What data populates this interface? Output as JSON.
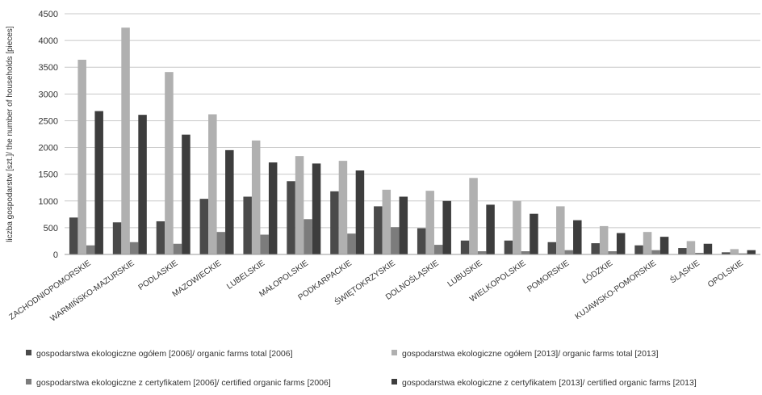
{
  "chart_data": {
    "type": "bar",
    "title": "",
    "xlabel": "",
    "ylabel": "liczba gospodarstw [szt.]/ the number of households [pieces]",
    "ylim": [
      0,
      4500
    ],
    "yticks": [
      0,
      500,
      1000,
      1500,
      2000,
      2500,
      3000,
      3500,
      4000,
      4500
    ],
    "grid": true,
    "legend_position": "bottom",
    "categories": [
      "ZACHODNIOPOMORSKIE",
      "WARMIŃSKO-MAZURSKIE",
      "PODLASKIE",
      "MAZOWIECKIE",
      "LUBELSKIE",
      "MAŁOPOLSKIE",
      "PODKARPACKIE",
      "ŚWIĘTOKRZYSKIE",
      "DOLNOŚLĄSKIE",
      "LUBUSKIE",
      "WIELKOPOLSKIE",
      "POMORSKIE",
      "ŁÓDZKIE",
      "KUJAWSKO-POMORSKIE",
      "ŚLĄSKIE",
      "OPOLSKIE"
    ],
    "series": [
      {
        "name": "gospodarstwa ekologiczne ogółem [2006]/ organic farms total [2006]",
        "color": "#4a4a4a",
        "values": [
          690,
          600,
          620,
          1040,
          1080,
          1370,
          1180,
          900,
          490,
          260,
          260,
          230,
          210,
          170,
          120,
          40
        ]
      },
      {
        "name": "gospodarstwa ekologiczne ogółem [2013]/ organic farms total [2013]",
        "color": "#b0b0b0",
        "values": [
          3640,
          4240,
          3410,
          2620,
          2130,
          1840,
          1750,
          1210,
          1190,
          1430,
          1000,
          900,
          530,
          420,
          250,
          100
        ]
      },
      {
        "name": "gospodarstwa ekologiczne z certyfikatem [2006]/ certified organic farms [2006]",
        "color": "#7c7c7c",
        "values": [
          170,
          230,
          200,
          420,
          370,
          660,
          390,
          510,
          180,
          60,
          60,
          80,
          60,
          80,
          30,
          20
        ]
      },
      {
        "name": "gospodarstwa ekologiczne z certyfikatem [2013]/ certified organic farms [2013]",
        "color": "#3d3d3d",
        "values": [
          2680,
          2610,
          2240,
          1950,
          1720,
          1700,
          1570,
          1080,
          1000,
          930,
          760,
          640,
          400,
          330,
          200,
          80
        ]
      }
    ]
  }
}
